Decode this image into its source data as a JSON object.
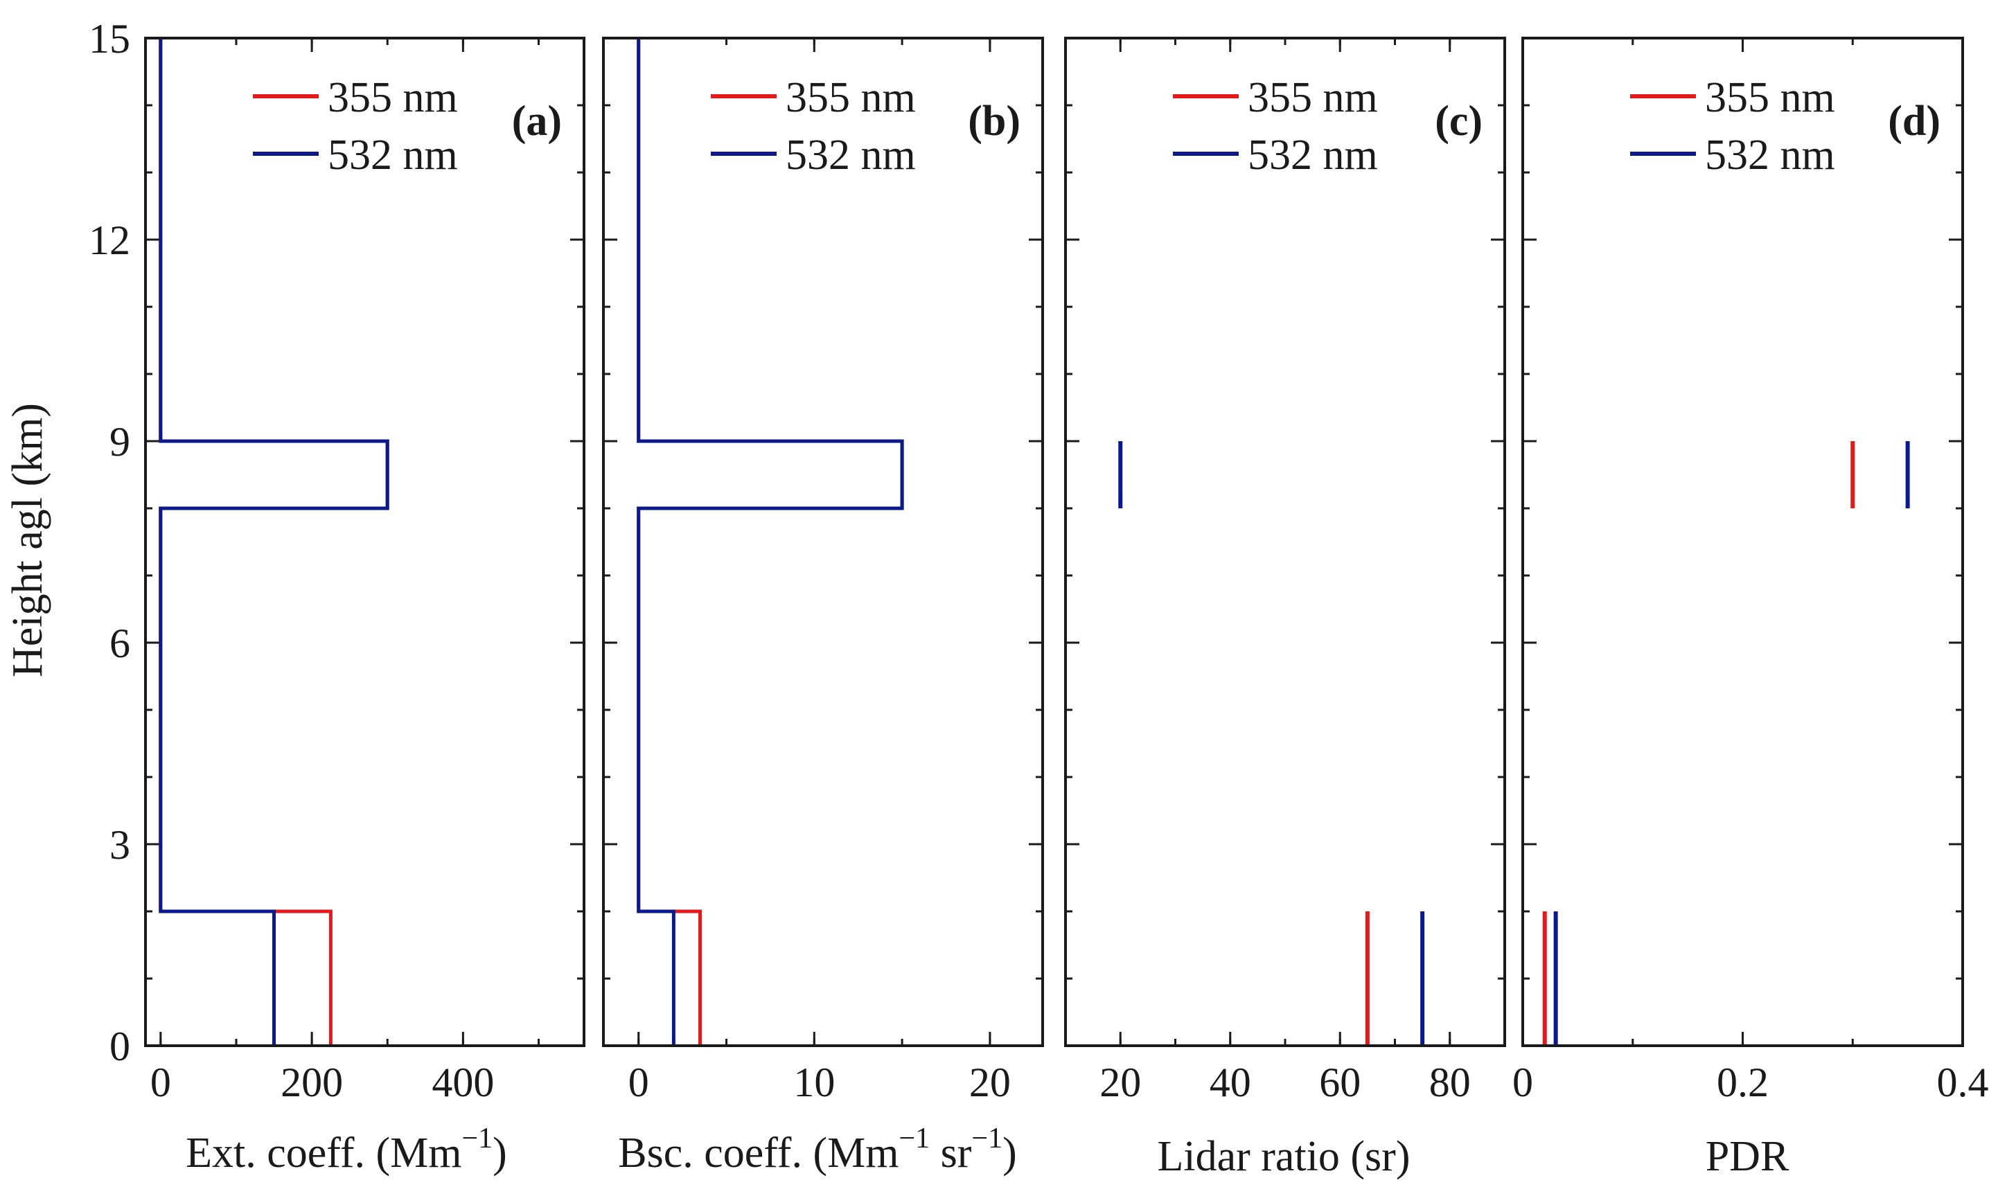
{
  "chart_data": [
    {
      "type": "line",
      "panel_label": "(a)",
      "xlabel": "Ext. coeff. (Mm",
      "xlabel_sup": "−1",
      "xlabel_end": ")",
      "ylabel": "Height agl (km)",
      "xlim": [
        -20,
        560
      ],
      "ylim": [
        0,
        15
      ],
      "xticks": [
        0,
        200,
        400
      ],
      "xtick_labels": [
        "0",
        "200",
        "400"
      ],
      "yticks": [
        0,
        3,
        6,
        9,
        12,
        15
      ],
      "ytick_labels": [
        "0",
        "3",
        "6",
        "9",
        "12",
        "15"
      ],
      "legend": [
        "355 nm",
        "532 nm"
      ],
      "legend_position": "top-right",
      "series": [
        {
          "name": "355 nm",
          "color": "#e31a1c",
          "x": [
            225,
            225,
            0,
            0,
            300,
            300,
            0,
            0
          ],
          "y": [
            0,
            2,
            2,
            8,
            8,
            9,
            9,
            15
          ]
        },
        {
          "name": "532 nm",
          "color": "#0a1a8c",
          "x": [
            150,
            150,
            0,
            0,
            300,
            300,
            0,
            0
          ],
          "y": [
            0,
            2,
            2,
            8,
            8,
            9,
            9,
            15
          ]
        }
      ]
    },
    {
      "type": "line",
      "panel_label": "(b)",
      "xlabel": "Bsc. coeff. (Mm",
      "xlabel_sup": "−1",
      "xlabel_mid": " sr",
      "xlabel_sup2": "−1",
      "xlabel_end": ")",
      "xlim": [
        -2,
        23
      ],
      "ylim": [
        0,
        15
      ],
      "xticks": [
        0,
        10,
        20
      ],
      "xtick_labels": [
        "0",
        "10",
        "20"
      ],
      "yticks": [
        0,
        3,
        6,
        9,
        12,
        15
      ],
      "legend": [
        "355 nm",
        "532 nm"
      ],
      "legend_position": "top-right",
      "series": [
        {
          "name": "355 nm",
          "color": "#e31a1c",
          "x": [
            3.5,
            3.5,
            0,
            0,
            15,
            15,
            0,
            0
          ],
          "y": [
            0,
            2,
            2,
            8,
            8,
            9,
            9,
            15
          ]
        },
        {
          "name": "532 nm",
          "color": "#0a1a8c",
          "x": [
            2,
            2,
            0,
            0,
            15,
            15,
            0,
            0
          ],
          "y": [
            0,
            2,
            2,
            8,
            8,
            9,
            9,
            15
          ]
        }
      ]
    },
    {
      "type": "line",
      "panel_label": "(c)",
      "xlabel": "Lidar ratio (sr)",
      "xlim": [
        10,
        90
      ],
      "ylim": [
        0,
        15
      ],
      "xticks": [
        20,
        40,
        60,
        80
      ],
      "xtick_labels": [
        "20",
        "40",
        "60",
        "80"
      ],
      "yticks": [
        0,
        3,
        6,
        9,
        12,
        15
      ],
      "legend": [
        "355 nm",
        "532 nm"
      ],
      "legend_position": "top-right",
      "series": [
        {
          "name": "355 nm",
          "color": "#e31a1c",
          "segments": [
            {
              "x": [
                65,
                65
              ],
              "y": [
                0,
                2
              ]
            }
          ]
        },
        {
          "name": "532 nm",
          "color": "#0a1a8c",
          "segments": [
            {
              "x": [
                75,
                75
              ],
              "y": [
                0,
                2
              ]
            },
            {
              "x": [
                20,
                20
              ],
              "y": [
                8,
                9
              ]
            }
          ]
        }
      ]
    },
    {
      "type": "line",
      "panel_label": "(d)",
      "xlabel": "PDR",
      "xlim": [
        0,
        0.4
      ],
      "ylim": [
        0,
        15
      ],
      "xticks": [
        0,
        0.2,
        0.4
      ],
      "xtick_labels": [
        "0",
        "0.2",
        "0.4"
      ],
      "yticks": [
        0,
        3,
        6,
        9,
        12,
        15
      ],
      "legend": [
        "355 nm",
        "532 nm"
      ],
      "legend_position": "top-right",
      "series": [
        {
          "name": "355 nm",
          "color": "#e31a1c",
          "segments": [
            {
              "x": [
                0.02,
                0.02
              ],
              "y": [
                0,
                2
              ]
            },
            {
              "x": [
                0.3,
                0.3
              ],
              "y": [
                8,
                9
              ]
            }
          ]
        },
        {
          "name": "532 nm",
          "color": "#0a1a8c",
          "segments": [
            {
              "x": [
                0.03,
                0.03
              ],
              "y": [
                0,
                2
              ]
            },
            {
              "x": [
                0.35,
                0.35
              ],
              "y": [
                8,
                9
              ]
            }
          ]
        }
      ]
    }
  ]
}
